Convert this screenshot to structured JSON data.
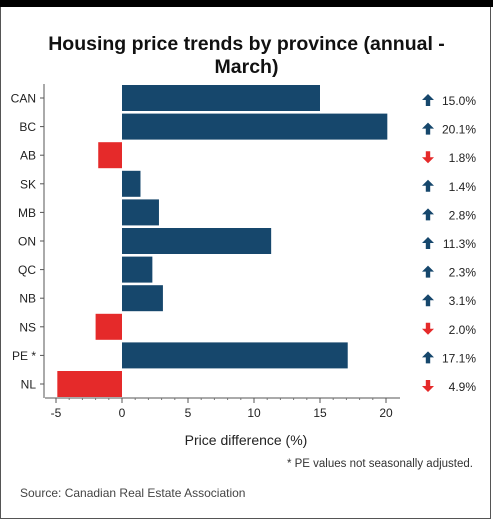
{
  "chart_data": {
    "type": "bar",
    "orientation": "horizontal",
    "title": "Housing price trends by province (annual - March)",
    "xlabel": "Price difference (%)",
    "ylabel": "",
    "xlim": [
      -5.5,
      20.5
    ],
    "xticks": [
      -5,
      0,
      5,
      10,
      15,
      20
    ],
    "categories": [
      "CAN",
      "BC",
      "AB",
      "SK",
      "MB",
      "ON",
      "QC",
      "NB",
      "NS",
      "PE *",
      "NL"
    ],
    "values": [
      15.0,
      20.1,
      -1.8,
      1.4,
      2.8,
      11.3,
      2.3,
      3.1,
      -2.0,
      17.1,
      -4.9
    ],
    "value_labels": [
      "15.0%",
      "20.1%",
      "1.8%",
      "1.4%",
      "2.8%",
      "11.3%",
      "2.3%",
      "3.1%",
      "2.0%",
      "17.1%",
      "4.9%"
    ],
    "grid": false,
    "colors": {
      "positive": "#16476c",
      "negative": "#e52a2a"
    }
  },
  "footnote": "* PE values not seasonally adjusted.",
  "source": "Source: Canadian Real Estate Association"
}
